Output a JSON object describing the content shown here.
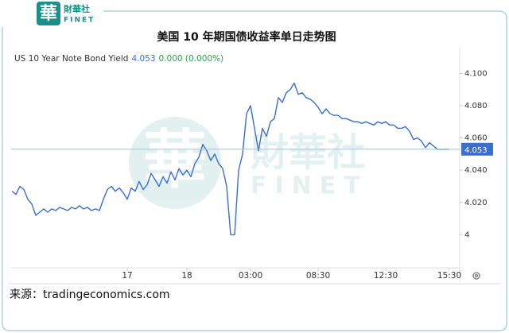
{
  "logo": {
    "char": "華",
    "name": "財華社",
    "sub": "FINET"
  },
  "chart_data": {
    "type": "line",
    "title": "美国 10 年期国债收益率单日走势图",
    "legend": {
      "name": "US 10 Year Note Bond Yield",
      "last": "4.053",
      "change": "0.000 (0.000%)"
    },
    "last": {
      "value": 4.053,
      "label": "4.053"
    },
    "source": "来源：tradingeconomics.com",
    "series": [
      {
        "name": "US 10 Year Note Bond Yield",
        "color": "#3a6fd0",
        "values": [
          4.027,
          4.025,
          4.03,
          4.028,
          4.022,
          4.019,
          4.012,
          4.014,
          4.016,
          4.014,
          4.016,
          4.015,
          4.017,
          4.016,
          4.015,
          4.017,
          4.016,
          4.018,
          4.016,
          4.017,
          4.015,
          4.016,
          4.015,
          4.022,
          4.028,
          4.03,
          4.027,
          4.029,
          4.026,
          4.022,
          4.029,
          4.027,
          4.033,
          4.028,
          4.031,
          4.038,
          4.034,
          4.03,
          4.036,
          4.032,
          4.039,
          4.034,
          4.041,
          4.037,
          4.04,
          4.036,
          4.044,
          4.048,
          4.056,
          4.052,
          4.046,
          4.05,
          4.044,
          4.041,
          4.03,
          4.0,
          4.0,
          4.04,
          4.05,
          4.075,
          4.08,
          4.066,
          4.052,
          4.066,
          4.061,
          4.07,
          4.072,
          4.085,
          4.082,
          4.088,
          4.09,
          4.094,
          4.087,
          4.088,
          4.085,
          4.084,
          4.082,
          4.079,
          4.075,
          4.078,
          4.075,
          4.074,
          4.074,
          4.072,
          4.072,
          4.071,
          4.07,
          4.07,
          4.069,
          4.07,
          4.069,
          4.068,
          4.07,
          4.069,
          4.07,
          4.068,
          4.068,
          4.066,
          4.066,
          4.067,
          4.064,
          4.059,
          4.06,
          4.058,
          4.054,
          4.057,
          4.055,
          4.053,
          4.053,
          4.053,
          4.053
        ]
      }
    ],
    "xlim": [
      0,
      110
    ],
    "xticks": [
      {
        "value": 29,
        "label": "17"
      },
      {
        "value": 44,
        "label": "18"
      },
      {
        "value": 60,
        "label": "03:00"
      },
      {
        "value": 77,
        "label": "08:30"
      },
      {
        "value": 94,
        "label": "12:30"
      },
      {
        "value": 110,
        "label": "15:30"
      }
    ],
    "ylim": [
      3.98,
      4.11
    ],
    "yticks": [
      4,
      {
        "value": 4.02,
        "label": "4.020"
      },
      {
        "value": 4.04,
        "label": "4.040"
      },
      {
        "value": 4.06,
        "label": "4.060"
      },
      {
        "value": 4.08,
        "label": "4.080"
      },
      {
        "value": 4.1,
        "label": "4.100"
      }
    ],
    "grid": false
  }
}
